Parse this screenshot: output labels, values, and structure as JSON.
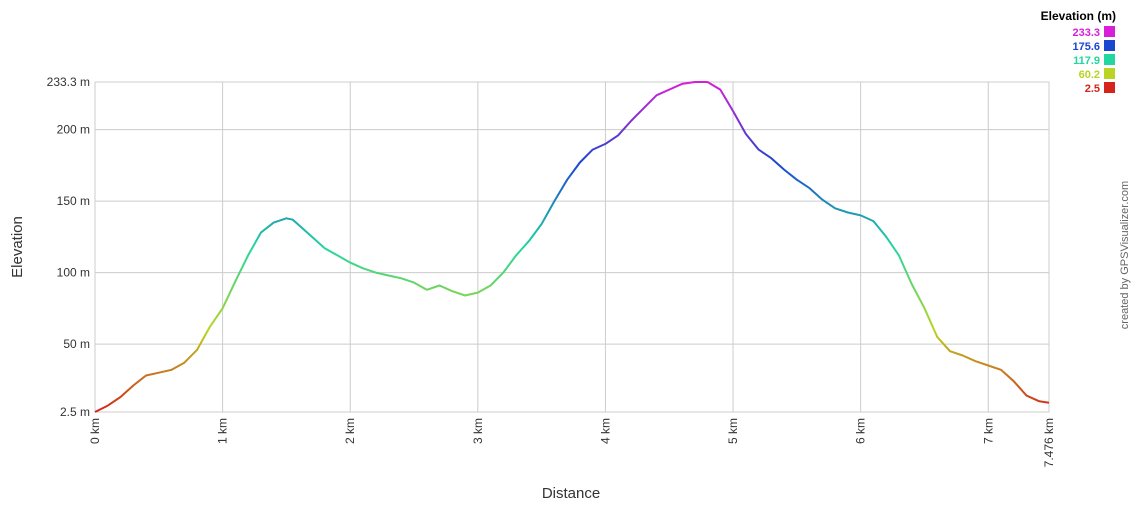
{
  "chart_data": {
    "type": "line",
    "xlabel": "Distance",
    "ylabel": "Elevation",
    "xlim": [
      0,
      7.476
    ],
    "ylim": [
      2.5,
      233.3
    ],
    "grid": true,
    "x_ticks": [
      {
        "value": 0,
        "label": "0 km"
      },
      {
        "value": 1,
        "label": "1 km"
      },
      {
        "value": 2,
        "label": "2 km"
      },
      {
        "value": 3,
        "label": "3 km"
      },
      {
        "value": 4,
        "label": "4 km"
      },
      {
        "value": 5,
        "label": "5 km"
      },
      {
        "value": 6,
        "label": "6 km"
      },
      {
        "value": 7,
        "label": "7 km"
      },
      {
        "value": 7.476,
        "label": "7.476 km"
      }
    ],
    "y_ticks": [
      {
        "value": 2.5,
        "label": "2.5 m"
      },
      {
        "value": 50,
        "label": "50 m"
      },
      {
        "value": 100,
        "label": "100 m"
      },
      {
        "value": 150,
        "label": "150 m"
      },
      {
        "value": 200,
        "label": "200 m"
      },
      {
        "value": 233.3,
        "label": "233.3 m"
      }
    ],
    "legend": {
      "title": "Elevation (m)",
      "placement": "top-right",
      "entries": [
        {
          "label": "233.3",
          "value": 233.3,
          "color": "#d71ed8"
        },
        {
          "label": "175.6",
          "value": 175.6,
          "color": "#1a47d0"
        },
        {
          "label": "117.9",
          "value": 117.9,
          "color": "#22d6a0"
        },
        {
          "label": "60.2",
          "value": 60.2,
          "color": "#b9d422"
        },
        {
          "label": "2.5",
          "value": 2.5,
          "color": "#d4241c"
        }
      ]
    },
    "series": [
      {
        "x": [
          0,
          0.1,
          0.2,
          0.3,
          0.4,
          0.5,
          0.6,
          0.7,
          0.8,
          0.9,
          1.0,
          1.1,
          1.2,
          1.3,
          1.4,
          1.5,
          1.55,
          1.6,
          1.7,
          1.8,
          1.9,
          2.0,
          2.1,
          2.2,
          2.3,
          2.4,
          2.5,
          2.6,
          2.7,
          2.8,
          2.9,
          3.0,
          3.1,
          3.2,
          3.3,
          3.4,
          3.5,
          3.6,
          3.7,
          3.8,
          3.9,
          4.0,
          4.1,
          4.2,
          4.3,
          4.4,
          4.5,
          4.6,
          4.7,
          4.8,
          4.9,
          5.0,
          5.1,
          5.2,
          5.3,
          5.4,
          5.5,
          5.6,
          5.7,
          5.8,
          5.9,
          6.0,
          6.1,
          6.2,
          6.3,
          6.4,
          6.5,
          6.6,
          6.7,
          6.8,
          6.9,
          7.0,
          7.1,
          7.2,
          7.3,
          7.4,
          7.476
        ],
        "y": [
          2.5,
          7,
          13,
          21,
          28,
          30,
          32,
          37,
          46,
          62,
          75,
          94,
          112,
          128,
          135,
          138,
          137,
          133,
          125,
          117,
          112,
          107,
          103,
          100,
          98,
          96,
          93,
          88,
          91,
          87,
          84,
          86,
          91,
          100,
          112,
          122,
          134,
          150,
          165,
          177,
          186,
          190,
          196,
          206,
          215,
          224,
          228,
          232,
          233.3,
          233.3,
          228,
          213,
          197,
          186,
          180,
          172,
          165,
          159,
          151,
          145,
          142,
          140,
          136,
          125,
          112,
          92,
          75,
          55,
          45,
          42,
          38,
          35,
          32,
          24,
          14,
          10,
          9
        ]
      }
    ]
  },
  "credit": "created by GPSVisualizer.com"
}
